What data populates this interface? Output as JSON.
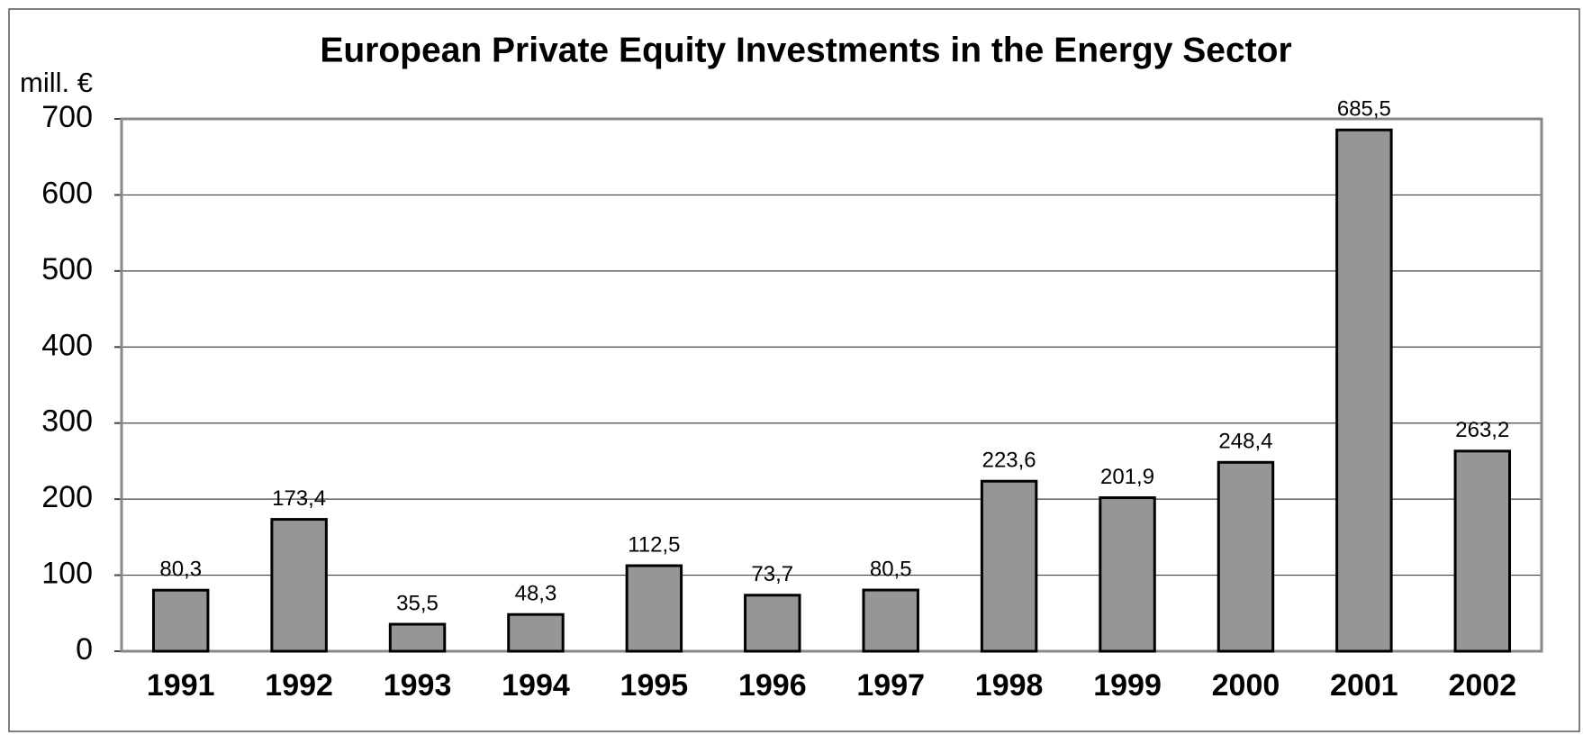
{
  "chart_data": {
    "type": "bar",
    "title": "European Private Equity Investments in the Energy Sector",
    "y_label": "mill. €",
    "categories": [
      "1991",
      "1992",
      "1993",
      "1994",
      "1995",
      "1996",
      "1997",
      "1998",
      "1999",
      "2000",
      "2001",
      "2002"
    ],
    "values": [
      80.3,
      173.4,
      35.5,
      48.3,
      112.5,
      73.7,
      80.5,
      223.6,
      201.9,
      248.4,
      685.5,
      263.2
    ],
    "value_labels": [
      "80,3",
      "173,4",
      "35,5",
      "48,3",
      "112,5",
      "73,7",
      "80,5",
      "223,6",
      "201,9",
      "248,4",
      "685,5",
      "263,2"
    ],
    "color": "#969696",
    "ylim": [
      0,
      700
    ],
    "yticks": [
      0,
      100,
      200,
      300,
      400,
      500,
      600,
      700
    ],
    "grid": true
  }
}
